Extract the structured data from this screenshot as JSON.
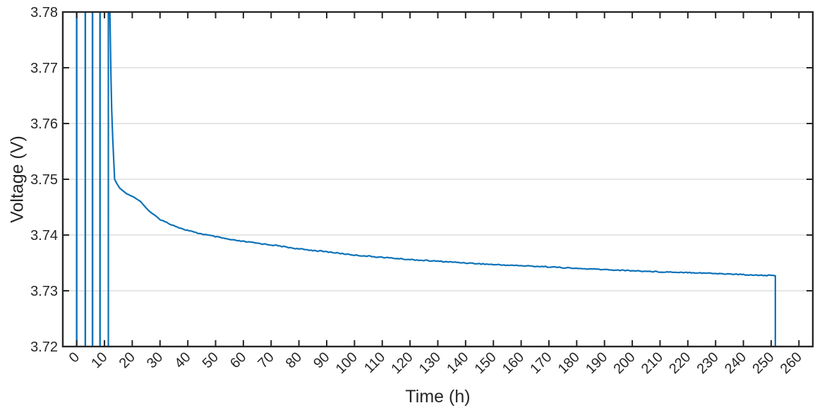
{
  "chart_data": {
    "type": "line",
    "title": "",
    "xlabel": "Time (h)",
    "ylabel": "Voltage (V)",
    "xlim": [
      -5,
      265
    ],
    "ylim": [
      3.72,
      3.78
    ],
    "grid": "horizontal-only",
    "legend": "none",
    "xticks": [
      {
        "value": 0,
        "label": "0"
      },
      {
        "value": 10,
        "label": "10"
      },
      {
        "value": 20,
        "label": "20"
      },
      {
        "value": 30,
        "label": "30"
      },
      {
        "value": 40,
        "label": "40"
      },
      {
        "value": 50,
        "label": "50"
      },
      {
        "value": 60,
        "label": "60"
      },
      {
        "value": 70,
        "label": "70"
      },
      {
        "value": 80,
        "label": "80"
      },
      {
        "value": 90,
        "label": "90"
      },
      {
        "value": 100,
        "label": "100"
      },
      {
        "value": 110,
        "label": "110"
      },
      {
        "value": 120,
        "label": "120"
      },
      {
        "value": 130,
        "label": "130"
      },
      {
        "value": 140,
        "label": "140"
      },
      {
        "value": 150,
        "label": "150"
      },
      {
        "value": 160,
        "label": "160"
      },
      {
        "value": 170,
        "label": "170"
      },
      {
        "value": 180,
        "label": "180"
      },
      {
        "value": 190,
        "label": "190"
      },
      {
        "value": 200,
        "label": "200"
      },
      {
        "value": 210,
        "label": "210"
      },
      {
        "value": 220,
        "label": "220"
      },
      {
        "value": 230,
        "label": "230"
      },
      {
        "value": 240,
        "label": "240"
      },
      {
        "value": 250,
        "label": "250"
      },
      {
        "value": 260,
        "label": "260"
      }
    ],
    "yticks": [
      {
        "value": 3.72,
        "label": "3.72"
      },
      {
        "value": 3.73,
        "label": "3.73"
      },
      {
        "value": 3.74,
        "label": "3.74"
      },
      {
        "value": 3.75,
        "label": "3.75"
      },
      {
        "value": 3.76,
        "label": "3.76"
      },
      {
        "value": 3.77,
        "label": "3.77"
      },
      {
        "value": 3.78,
        "label": "3.78"
      }
    ],
    "xtick_rotation_deg": 45,
    "series": [
      {
        "name": "cell-voltage",
        "color": "#0d72b8",
        "pulse_times_h": [
          0,
          3.1,
          5.7,
          8.4
        ],
        "pulses_span_full_y_range": true,
        "main_rise_time_h": 11.4,
        "main_top_end_time_h": 11.95,
        "relaxation_points": [
          [
            12.0,
            3.78
          ],
          [
            12.15,
            3.774
          ],
          [
            12.35,
            3.768
          ],
          [
            12.6,
            3.7625
          ],
          [
            13.0,
            3.757
          ],
          [
            13.65,
            3.75
          ],
          [
            14.5,
            3.7492
          ],
          [
            15.5,
            3.7484
          ],
          [
            18,
            3.7474
          ],
          [
            20.6,
            3.7468
          ],
          [
            23,
            3.746
          ],
          [
            26,
            3.7443
          ],
          [
            30,
            3.7428
          ],
          [
            33,
            3.7421
          ],
          [
            38,
            3.7411
          ],
          [
            43,
            3.7404
          ],
          [
            48,
            3.7399
          ],
          [
            56,
            3.7391
          ],
          [
            64,
            3.7386
          ],
          [
            72,
            3.7381
          ],
          [
            80,
            3.7375
          ],
          [
            90,
            3.737
          ],
          [
            100,
            3.7364
          ],
          [
            110,
            3.736
          ],
          [
            120,
            3.7356
          ],
          [
            130,
            3.7353
          ],
          [
            140,
            3.735
          ],
          [
            150,
            3.7347
          ],
          [
            160,
            3.7345
          ],
          [
            170,
            3.7343
          ],
          [
            180,
            3.734
          ],
          [
            190,
            3.7338
          ],
          [
            200,
            3.7336
          ],
          [
            210,
            3.7334
          ],
          [
            220,
            3.7333
          ],
          [
            230,
            3.7331
          ],
          [
            240,
            3.7329
          ],
          [
            246,
            3.7328
          ],
          [
            251.4,
            3.7327
          ]
        ],
        "end_drop_time_h": 251.5,
        "end_drop_to_v": 3.72
      }
    ],
    "colors": {
      "line": "#0d72b8",
      "axis": "#262626",
      "tick_label": "#262626",
      "grid": "#e2e2e2",
      "background": "#ffffff"
    }
  }
}
